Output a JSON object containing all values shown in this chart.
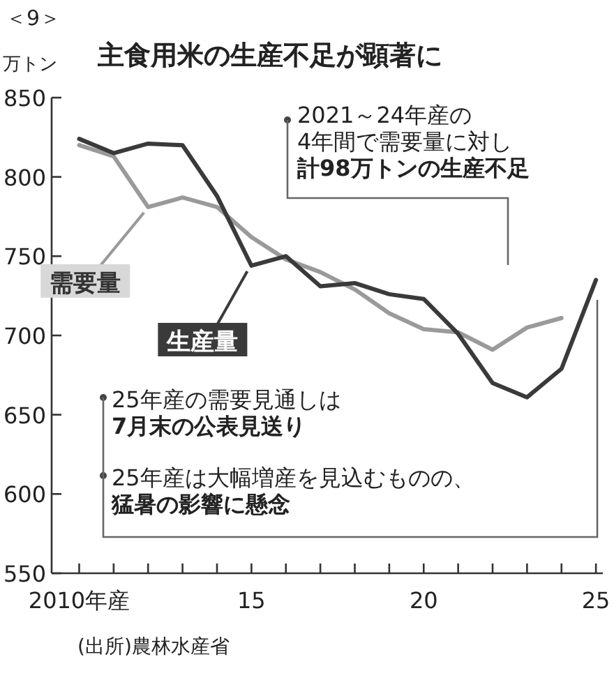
{
  "chart_data": {
    "type": "line",
    "title": "主食用米の生産不足が顕著に",
    "ylabel": "万トン",
    "x": [
      2010,
      2011,
      2012,
      2013,
      2014,
      2015,
      2016,
      2017,
      2018,
      2019,
      2020,
      2021,
      2022,
      2023,
      2024,
      2025
    ],
    "series": [
      {
        "name": "需要量",
        "color": "#9a9a9a",
        "values": [
          820,
          813,
          781,
          787,
          781,
          762,
          748,
          740,
          729,
          714,
          704,
          702,
          691,
          705,
          711,
          null
        ]
      },
      {
        "name": "生産量",
        "color": "#3a3a3a",
        "values": [
          824,
          815,
          821,
          820,
          788,
          744,
          750,
          731,
          733,
          726,
          723,
          701,
          670,
          661,
          679,
          735
        ]
      }
    ],
    "xlim": [
      2009.2,
      2025.2
    ],
    "xticks": [
      {
        "value": 2010,
        "label": "2010年産"
      },
      {
        "value": 2011,
        "label": null
      },
      {
        "value": 2012,
        "label": null
      },
      {
        "value": 2013,
        "label": null
      },
      {
        "value": 2014,
        "label": null
      },
      {
        "value": 2015,
        "label": "15"
      },
      {
        "value": 2016,
        "label": null
      },
      {
        "value": 2017,
        "label": null
      },
      {
        "value": 2018,
        "label": null
      },
      {
        "value": 2019,
        "label": null
      },
      {
        "value": 2020,
        "label": "20"
      },
      {
        "value": 2021,
        "label": null
      },
      {
        "value": 2022,
        "label": null
      },
      {
        "value": 2023,
        "label": null
      },
      {
        "value": 2024,
        "label": null
      },
      {
        "value": 2025,
        "label": "25"
      }
    ],
    "ylim": [
      550,
      850
    ],
    "yticks": [
      550,
      600,
      650,
      700,
      750,
      800,
      850
    ],
    "legend": "left",
    "grid": false,
    "marker": "none",
    "line_style": "solid",
    "annotations": [
      "＜9＞",
      "2021～24年産の",
      "4年間で需要量に対し",
      "計98万トンの生産不足",
      "25年産の需要見通しは",
      "7月末の公表見送り",
      "25年産は大幅増産を見込むものの、",
      "猛暑の影響に懸念",
      "(出所)農林水産省"
    ]
  }
}
